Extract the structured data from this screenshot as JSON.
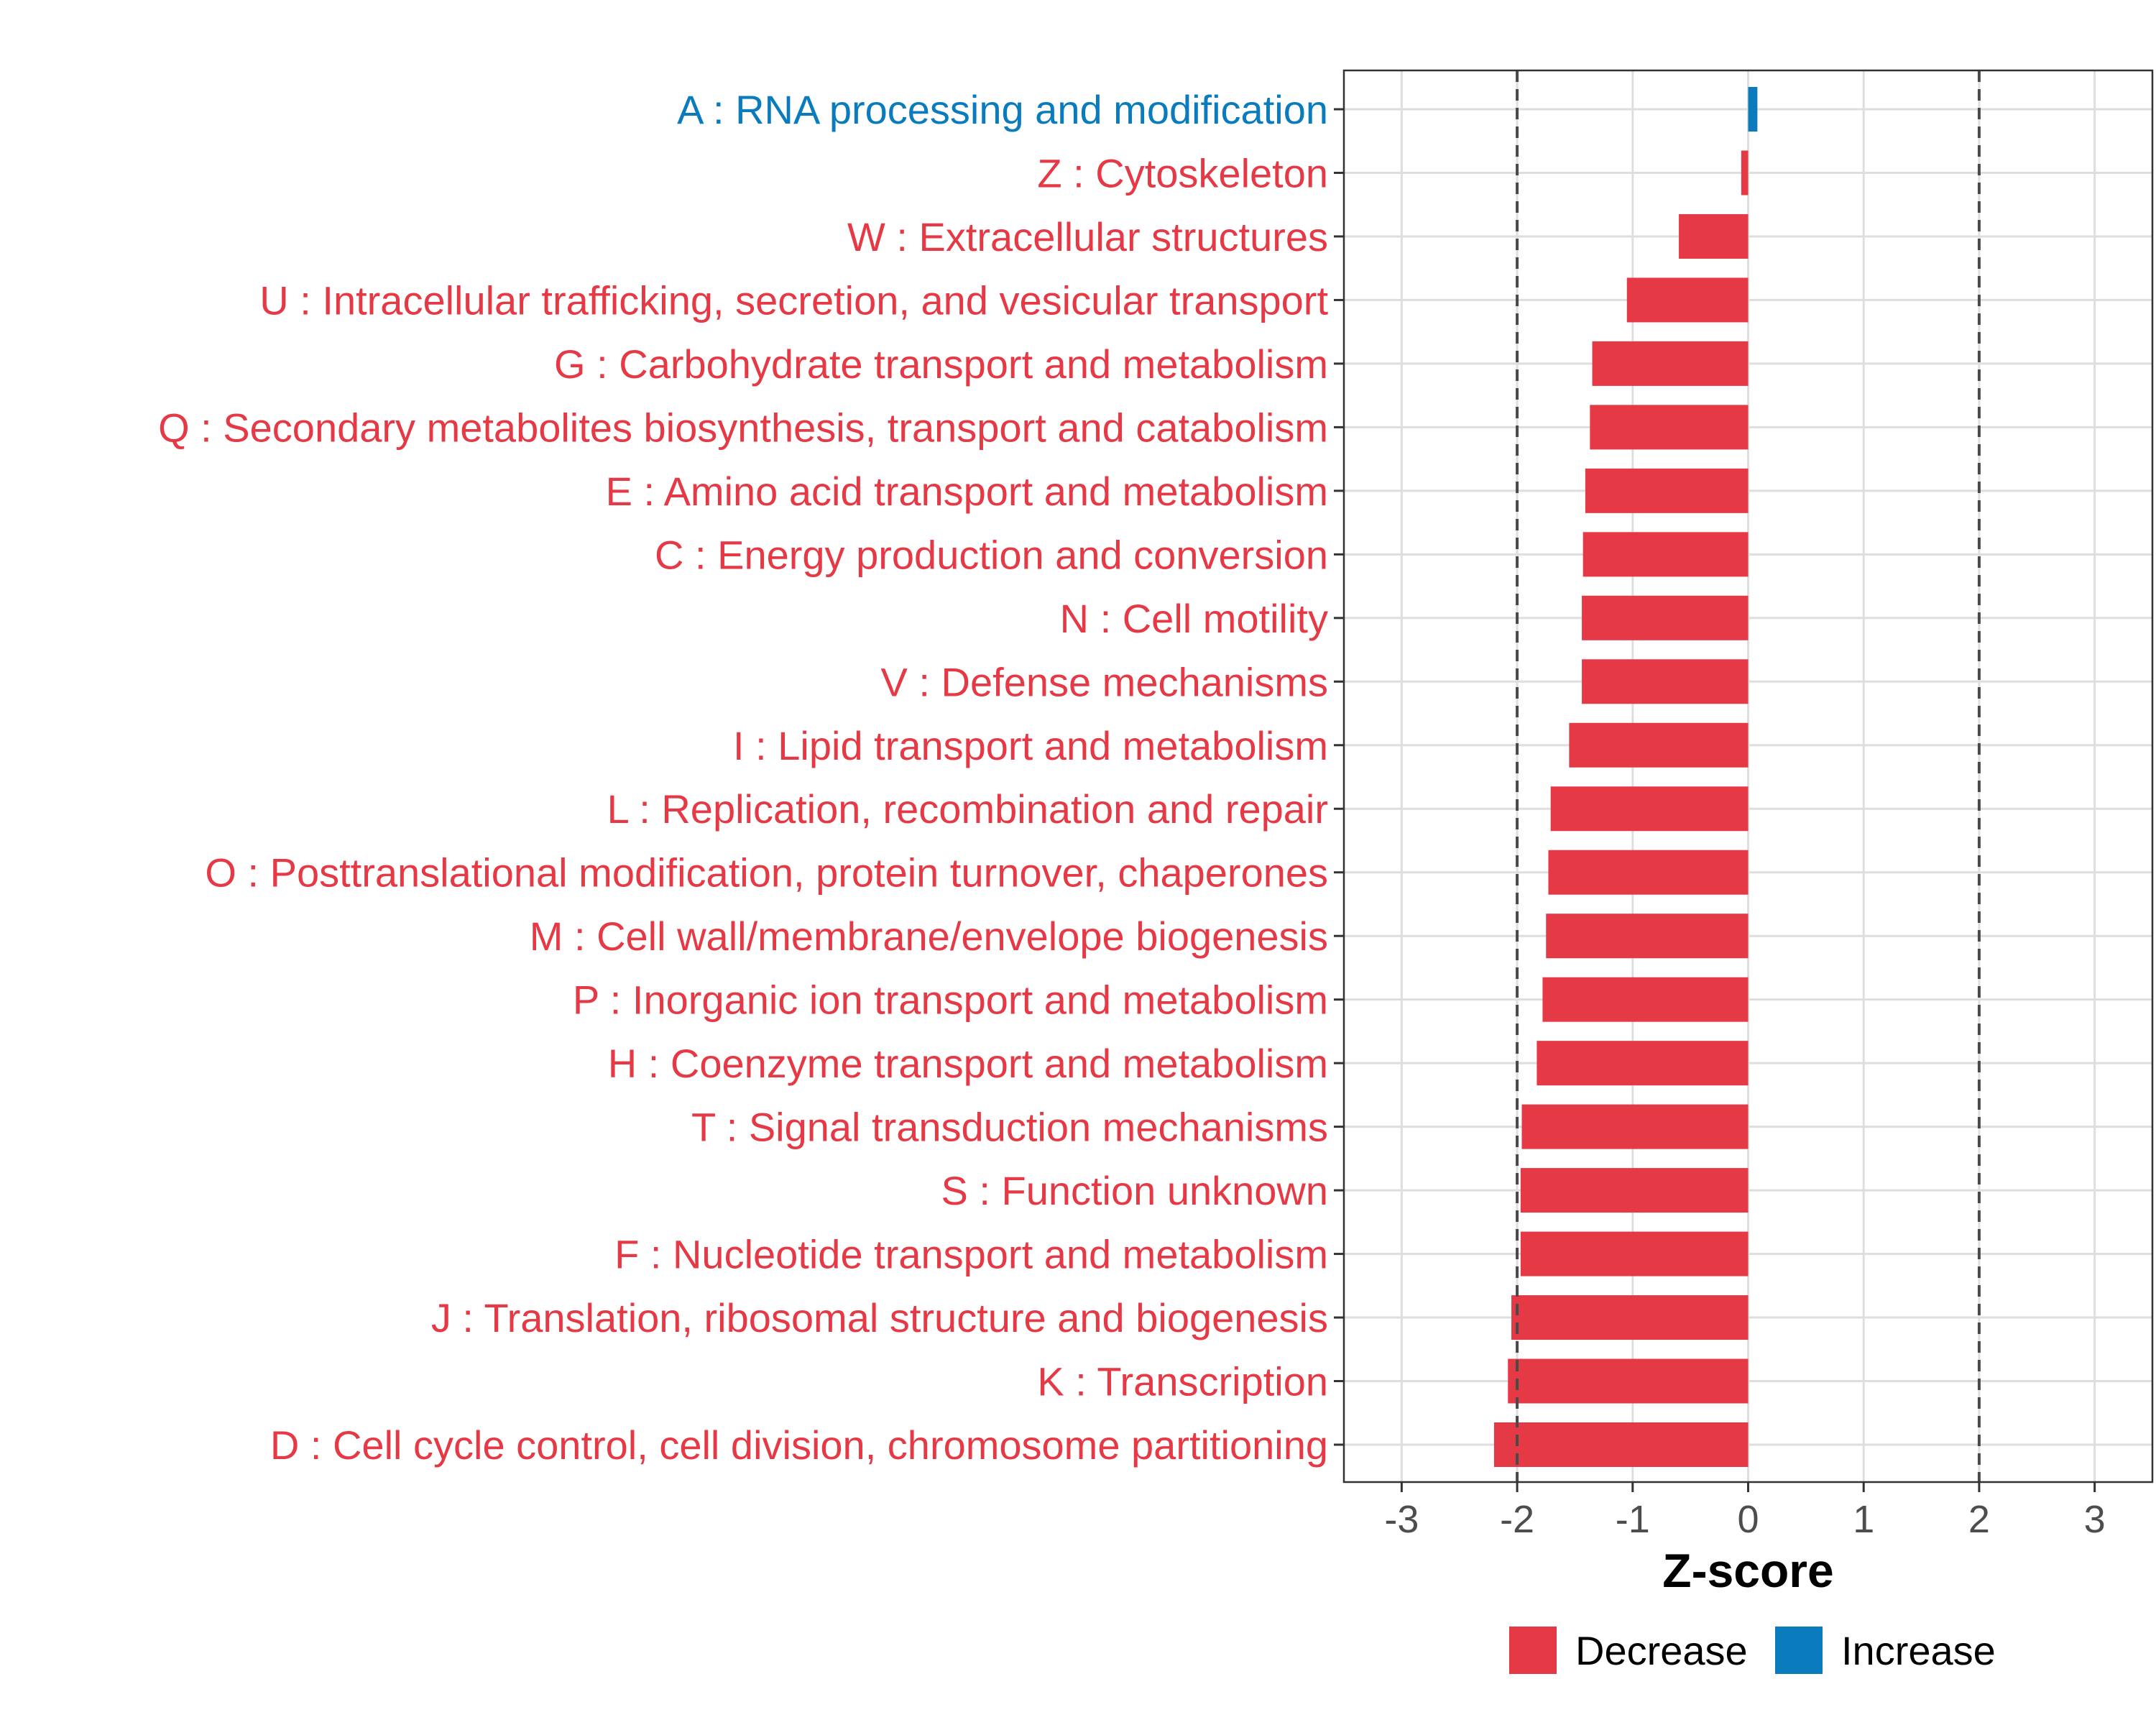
{
  "chart_data": {
    "type": "bar",
    "orientation": "horizontal",
    "title": "",
    "xlabel": "Z-score",
    "ylabel": "",
    "xlim": [
      -3.5,
      3.5
    ],
    "xticks": [
      -3,
      -2,
      -1,
      0,
      1,
      2,
      3
    ],
    "xtick_labels": [
      "-3",
      "-2",
      "-1",
      "0",
      "1",
      "2",
      "3"
    ],
    "reference_lines": [
      -2,
      2
    ],
    "grid": true,
    "legend_position": "bottom",
    "colors": {
      "Decrease": "#e63946",
      "Increase": "#0a7bbd"
    },
    "legend": [
      {
        "name": "Decrease",
        "color": "#e63946"
      },
      {
        "name": "Increase",
        "color": "#0a7bbd"
      }
    ],
    "categories": [
      "A : RNA processing and modification",
      "Z : Cytoskeleton",
      "W : Extracellular structures",
      "U : Intracellular trafficking, secretion, and vesicular transport",
      "G : Carbohydrate transport and metabolism",
      "Q : Secondary metabolites biosynthesis, transport and catabolism",
      "E : Amino acid transport and metabolism",
      "C : Energy production and conversion",
      "N : Cell motility",
      "V : Defense mechanisms",
      "I : Lipid transport and metabolism",
      "L : Replication, recombination and repair",
      "O : Posttranslational modification, protein turnover, chaperones",
      "M : Cell wall/membrane/envelope biogenesis",
      "P : Inorganic ion transport and metabolism",
      "H : Coenzyme transport and metabolism",
      "T : Signal transduction mechanisms",
      "S : Function unknown",
      "F : Nucleotide transport and metabolism",
      "J : Translation, ribosomal structure and biogenesis",
      "K : Transcription",
      "D : Cell cycle control, cell division, chromosome partitioning"
    ],
    "values": [
      0.08,
      -0.06,
      -0.6,
      -1.05,
      -1.35,
      -1.37,
      -1.41,
      -1.43,
      -1.44,
      -1.44,
      -1.55,
      -1.71,
      -1.73,
      -1.75,
      -1.78,
      -1.83,
      -1.96,
      -1.97,
      -1.97,
      -2.05,
      -2.08,
      -2.2
    ],
    "groups": [
      "Increase",
      "Decrease",
      "Decrease",
      "Decrease",
      "Decrease",
      "Decrease",
      "Decrease",
      "Decrease",
      "Decrease",
      "Decrease",
      "Decrease",
      "Decrease",
      "Decrease",
      "Decrease",
      "Decrease",
      "Decrease",
      "Decrease",
      "Decrease",
      "Decrease",
      "Decrease",
      "Decrease",
      "Decrease"
    ]
  }
}
